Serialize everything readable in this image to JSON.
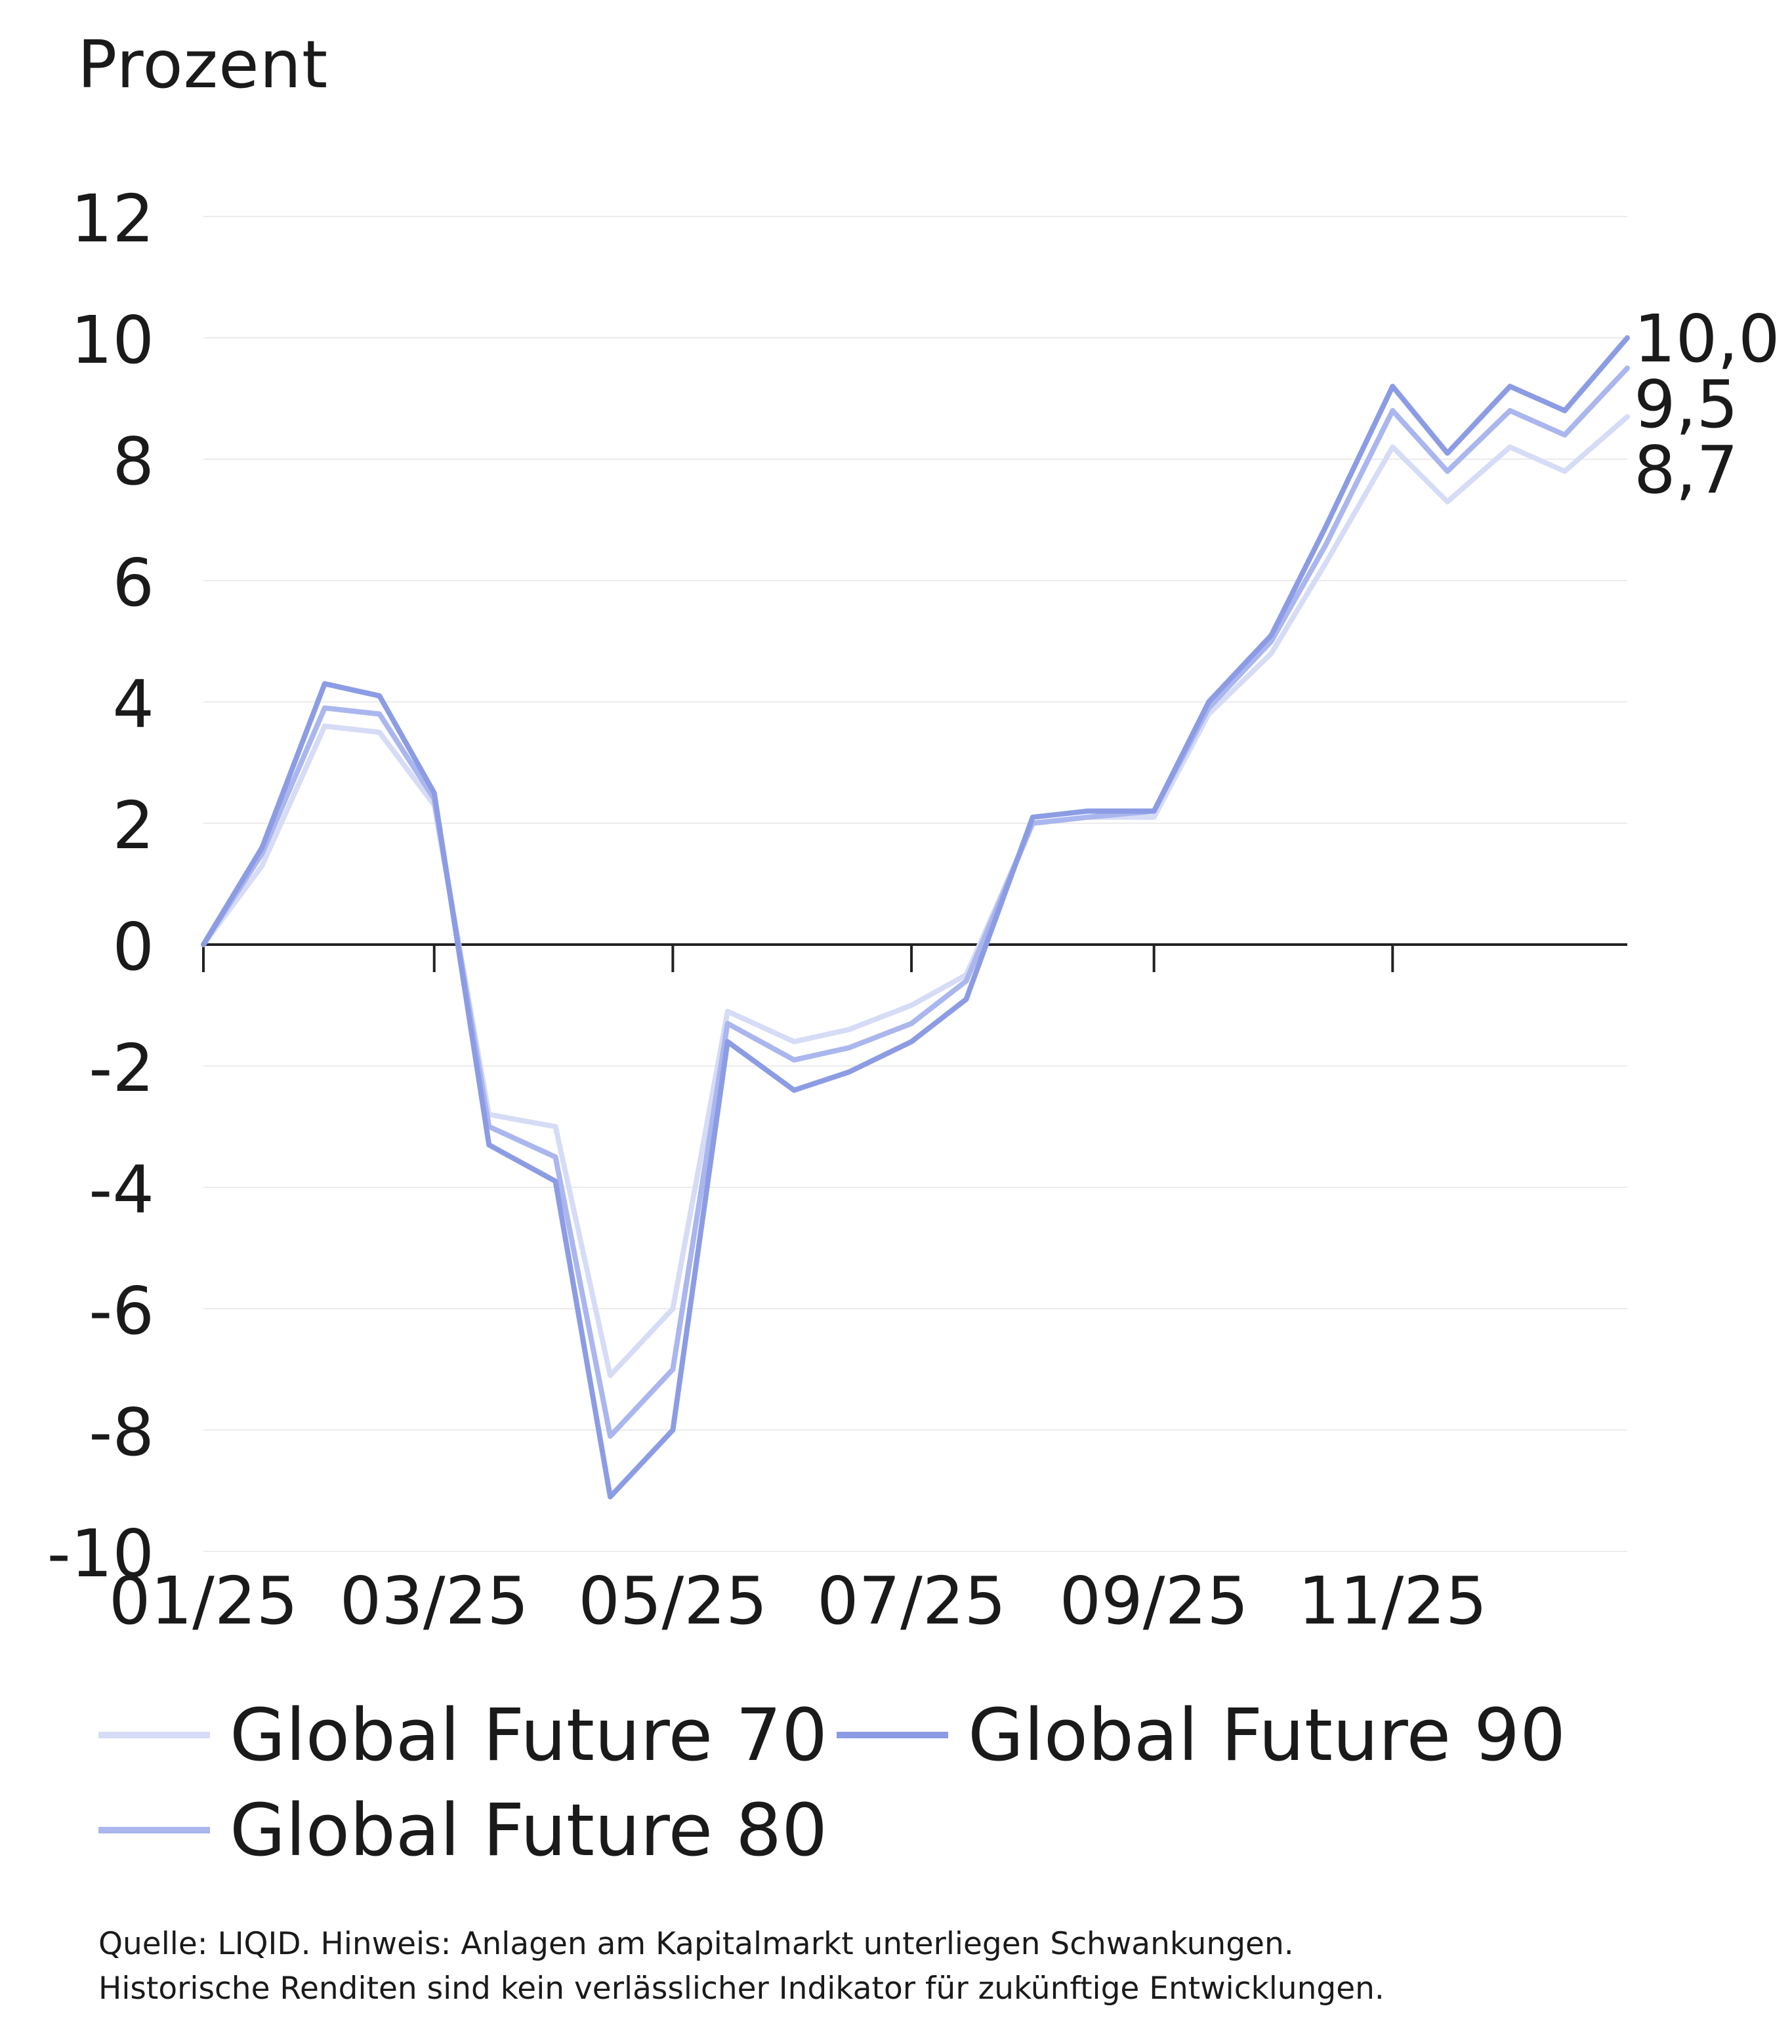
{
  "chart_data": {
    "type": "line",
    "ylabel": "Prozent",
    "ylim": [
      -10,
      12
    ],
    "yticks": [
      12,
      10,
      8,
      6,
      4,
      2,
      0,
      -2,
      -4,
      -6,
      -8,
      -10
    ],
    "ytick_labels": [
      "12",
      "10",
      "8",
      "6",
      "4",
      "2",
      "0",
      "-2",
      "-4",
      "-6",
      "-8",
      "-10"
    ],
    "xlim": [
      "2025-01-01",
      "2025-12-31"
    ],
    "xticks": [
      "2025-01-01",
      "2025-03-01",
      "2025-05-01",
      "2025-07-01",
      "2025-09-01",
      "2025-11-01"
    ],
    "xtick_labels": [
      "01/25",
      "03/25",
      "05/25",
      "07/25",
      "09/25",
      "11/25"
    ],
    "grid": true,
    "legend_position": "bottom",
    "series": [
      {
        "name": "Global Future 70",
        "color": "#d6dcf6",
        "end_label": "8,7",
        "x": [
          "2025-01-01",
          "2025-01-16",
          "2025-02-01",
          "2025-02-15",
          "2025-03-01",
          "2025-03-15",
          "2025-04-01",
          "2025-04-15",
          "2025-05-01",
          "2025-05-15",
          "2025-06-01",
          "2025-06-15",
          "2025-07-01",
          "2025-07-15",
          "2025-08-01",
          "2025-08-15",
          "2025-09-01",
          "2025-09-15",
          "2025-10-01",
          "2025-10-15",
          "2025-11-01",
          "2025-11-15",
          "2025-12-01",
          "2025-12-15",
          "2025-12-31"
        ],
        "y": [
          0,
          1.3,
          3.6,
          3.5,
          2.3,
          -2.8,
          -3.0,
          -7.1,
          -6.0,
          -1.1,
          -1.6,
          -1.4,
          -1.0,
          -0.5,
          2.0,
          2.1,
          2.1,
          3.8,
          4.8,
          6.3,
          8.2,
          7.3,
          8.2,
          7.8,
          8.7
        ]
      },
      {
        "name": "Global Future 80",
        "color": "#aab6ee",
        "end_label": "9,5",
        "x": [
          "2025-01-01",
          "2025-01-16",
          "2025-02-01",
          "2025-02-15",
          "2025-03-01",
          "2025-03-15",
          "2025-04-01",
          "2025-04-15",
          "2025-05-01",
          "2025-05-15",
          "2025-06-01",
          "2025-06-15",
          "2025-07-01",
          "2025-07-15",
          "2025-08-01",
          "2025-08-15",
          "2025-09-01",
          "2025-09-15",
          "2025-10-01",
          "2025-10-15",
          "2025-11-01",
          "2025-11-15",
          "2025-12-01",
          "2025-12-15",
          "2025-12-31"
        ],
        "y": [
          0,
          1.5,
          3.9,
          3.8,
          2.4,
          -3.0,
          -3.5,
          -8.1,
          -7.0,
          -1.3,
          -1.9,
          -1.7,
          -1.3,
          -0.6,
          2.0,
          2.1,
          2.2,
          3.9,
          5.0,
          6.6,
          8.8,
          7.8,
          8.8,
          8.4,
          9.5
        ]
      },
      {
        "name": "Global Future 90",
        "color": "#8c9ce4",
        "end_label": "10,0",
        "x": [
          "2025-01-01",
          "2025-01-16",
          "2025-02-01",
          "2025-02-15",
          "2025-03-01",
          "2025-03-15",
          "2025-04-01",
          "2025-04-15",
          "2025-05-01",
          "2025-05-15",
          "2025-06-01",
          "2025-06-15",
          "2025-07-01",
          "2025-07-15",
          "2025-08-01",
          "2025-08-15",
          "2025-09-01",
          "2025-09-15",
          "2025-10-01",
          "2025-10-15",
          "2025-11-01",
          "2025-11-15",
          "2025-12-01",
          "2025-12-15",
          "2025-12-31"
        ],
        "y": [
          0,
          1.6,
          4.3,
          4.1,
          2.5,
          -3.3,
          -3.9,
          -9.1,
          -8.0,
          -1.6,
          -2.4,
          -2.1,
          -1.6,
          -0.9,
          2.1,
          2.2,
          2.2,
          4.0,
          5.1,
          6.9,
          9.2,
          8.1,
          9.2,
          8.8,
          10.0
        ]
      }
    ]
  },
  "legend": {
    "items": [
      {
        "label": "Global Future 70",
        "color": "#d6dcf6"
      },
      {
        "label": "Global Future 90",
        "color": "#8c9ce4"
      },
      {
        "label": "Global Future 80",
        "color": "#aab6ee"
      }
    ]
  },
  "footer": {
    "source_line1": "Quelle: LIQID. Hinweis: Anlagen am Kapitalmarkt unterliegen Schwankungen.",
    "source_line2": "Historische Renditen sind kein verlässlicher Indikator für zukünftige Entwicklungen."
  }
}
